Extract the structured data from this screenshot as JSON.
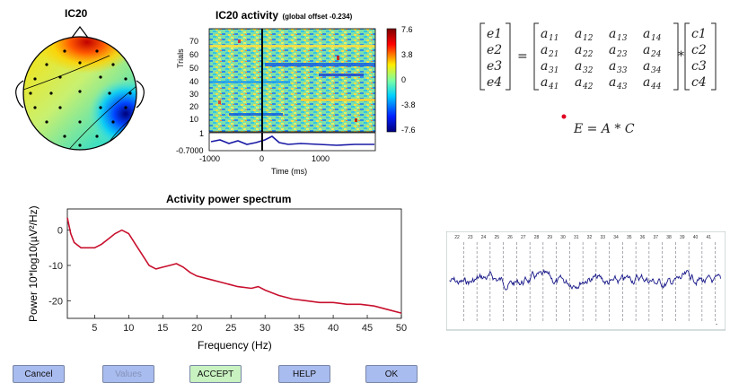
{
  "topo": {
    "title": "IC20"
  },
  "erp": {
    "title": "IC20 activity",
    "offset_label": "(global offset -0.234)",
    "ylabel": "Trials",
    "xlabel": "Time (ms)",
    "yticks": [
      "70",
      "60",
      "50",
      "40",
      "30",
      "20",
      "10"
    ],
    "xticks": [
      "-1000",
      "0",
      "1000"
    ],
    "trace_ticks": [
      "1",
      "-0.7000"
    ],
    "colorbar_ticks": [
      "7.6",
      "3.8",
      "0",
      "-3.8",
      "-7.6"
    ]
  },
  "matrix": {
    "e": [
      "e1",
      "e2",
      "e3",
      "e4"
    ],
    "a": [
      [
        "11",
        "12",
        "13",
        "14"
      ],
      [
        "21",
        "22",
        "23",
        "24"
      ],
      [
        "31",
        "32",
        "33",
        "34"
      ],
      [
        "41",
        "42",
        "43",
        "44"
      ]
    ],
    "c": [
      "c1",
      "c2",
      "c3",
      "c4"
    ],
    "equation": "E = A * C"
  },
  "spectrum": {
    "title": "Activity power spectrum",
    "xlabel": "Frequency (Hz)",
    "ylabel": "Power 10*log10(µV²/Hz)",
    "xticks": [
      "5",
      "10",
      "15",
      "20",
      "25",
      "30",
      "35",
      "40",
      "45",
      "50"
    ],
    "yticks": [
      "0",
      "-10",
      "-20"
    ]
  },
  "chart_data": {
    "type": "line",
    "title": "Activity power spectrum",
    "xlabel": "Frequency (Hz)",
    "ylabel": "Power 10*log10(µV²/Hz)",
    "xlim": [
      1,
      50
    ],
    "ylim": [
      -25,
      6
    ],
    "series": [
      {
        "color": "#c8102e",
        "x": [
          1,
          1.5,
          2,
          3,
          4,
          5,
          6,
          7,
          8,
          9,
          10,
          11,
          12,
          13,
          14,
          15,
          16,
          17,
          18,
          19,
          20,
          22,
          24,
          26,
          28,
          29,
          30,
          32,
          34,
          36,
          38,
          40,
          42,
          44,
          46,
          48,
          50
        ],
        "y": [
          3.5,
          -1,
          -3.5,
          -5,
          -5,
          -5,
          -4,
          -2.5,
          -1,
          0,
          -1,
          -4,
          -7,
          -10,
          -11,
          -10.5,
          -10,
          -9.5,
          -10.5,
          -12,
          -13,
          -14,
          -15,
          -16,
          -16.5,
          -16,
          -17,
          -18.5,
          -19.5,
          -20,
          -20.5,
          -20.5,
          -21,
          -21,
          -21.5,
          -22.5,
          -23.5
        ]
      }
    ]
  },
  "eeg": {
    "channel_numbers": [
      "22",
      "23",
      "24",
      "25",
      "26",
      "27",
      "28",
      "29",
      "30",
      "31",
      "32",
      "33",
      "34",
      "35",
      "36",
      "37",
      "38",
      "39",
      "40",
      "41"
    ]
  },
  "buttons": {
    "cancel": "Cancel",
    "values": "Values",
    "accept": "ACCEPT",
    "help": "HELP",
    "ok": "OK"
  },
  "colors": {
    "trace_blue": "#1a1aa6",
    "spectrum_red": "#c8102e",
    "button_blue": "#a9bcef",
    "button_green": "#c8f2c0"
  }
}
